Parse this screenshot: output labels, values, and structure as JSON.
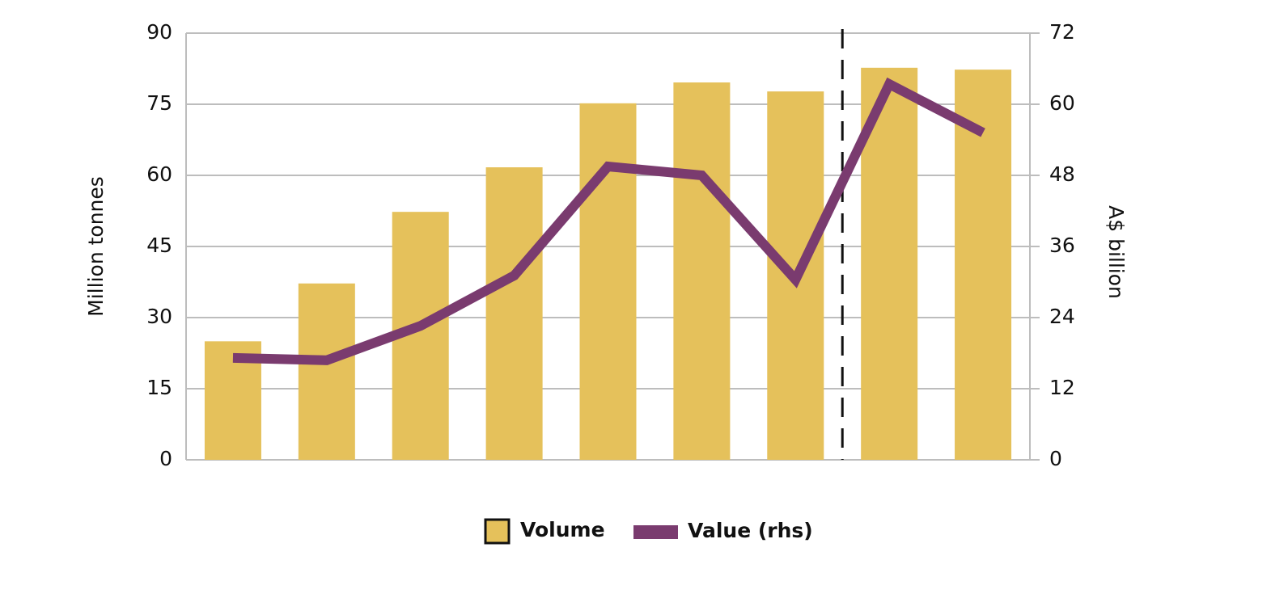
{
  "chart_data": {
    "type": "bar",
    "y_label": "Million tonnes",
    "y2_label": "A$ billion",
    "categories": [
      null,
      null,
      null,
      null,
      null,
      null,
      null,
      null,
      null
    ],
    "series": [
      {
        "name": "Volume",
        "type": "bar",
        "color": "#e5c15b",
        "values": [
          25,
          37.2,
          52.3,
          61.7,
          75.2,
          79.6,
          77.7,
          82.7,
          82.3
        ]
      },
      {
        "name": "Value (rhs)",
        "type": "line",
        "axis": "y2",
        "color": "#7a3b6f",
        "values": [
          17.2,
          16.8,
          22.6,
          31.1,
          49.5,
          48.0,
          30.4,
          63.4,
          55.2
        ]
      }
    ],
    "ylim": [
      0,
      90
    ],
    "yticks": [
      0,
      15,
      30,
      45,
      60,
      75,
      90
    ],
    "y2lim": [
      0,
      72
    ],
    "y2ticks": [
      0,
      12,
      24,
      36,
      48,
      60,
      72
    ],
    "grid": true
  }
}
